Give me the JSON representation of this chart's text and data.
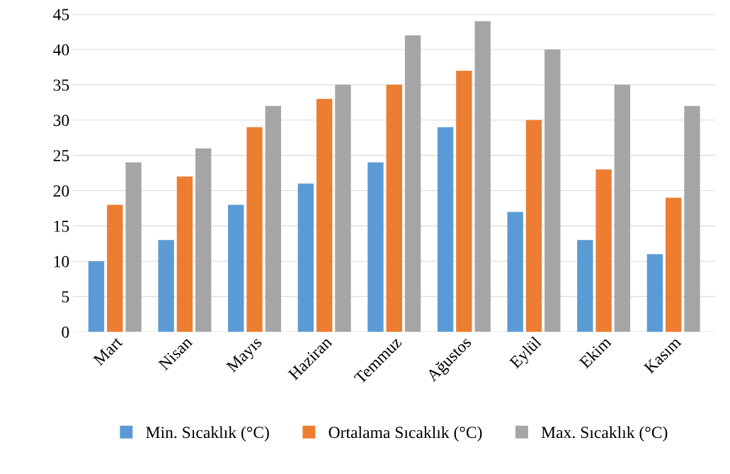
{
  "chart_data": {
    "type": "bar",
    "categories": [
      "Mart",
      "Nisan",
      "Mayıs",
      "Haziran",
      "Temmuz",
      "Ağustos",
      "Eylül",
      "Ekim",
      "Kasım"
    ],
    "series": [
      {
        "name": "Min. Sıcaklık (°C)",
        "color": "#5b9bd5",
        "values": [
          10,
          13,
          18,
          21,
          24,
          29,
          17,
          13,
          11
        ]
      },
      {
        "name": "Ortalama Sıcaklık (°C)",
        "color": "#ed7d31",
        "values": [
          18,
          22,
          29,
          33,
          35,
          37,
          30,
          23,
          19
        ]
      },
      {
        "name": "Max. Sıcaklık (°C)",
        "color": "#a5a5a5",
        "values": [
          24,
          26,
          32,
          35,
          42,
          44,
          40,
          35,
          32
        ]
      }
    ],
    "ylim": [
      0,
      45
    ],
    "yticks": [
      0,
      5,
      10,
      15,
      20,
      25,
      30,
      35,
      40,
      45
    ],
    "grid": "y",
    "legend": "bottom"
  }
}
